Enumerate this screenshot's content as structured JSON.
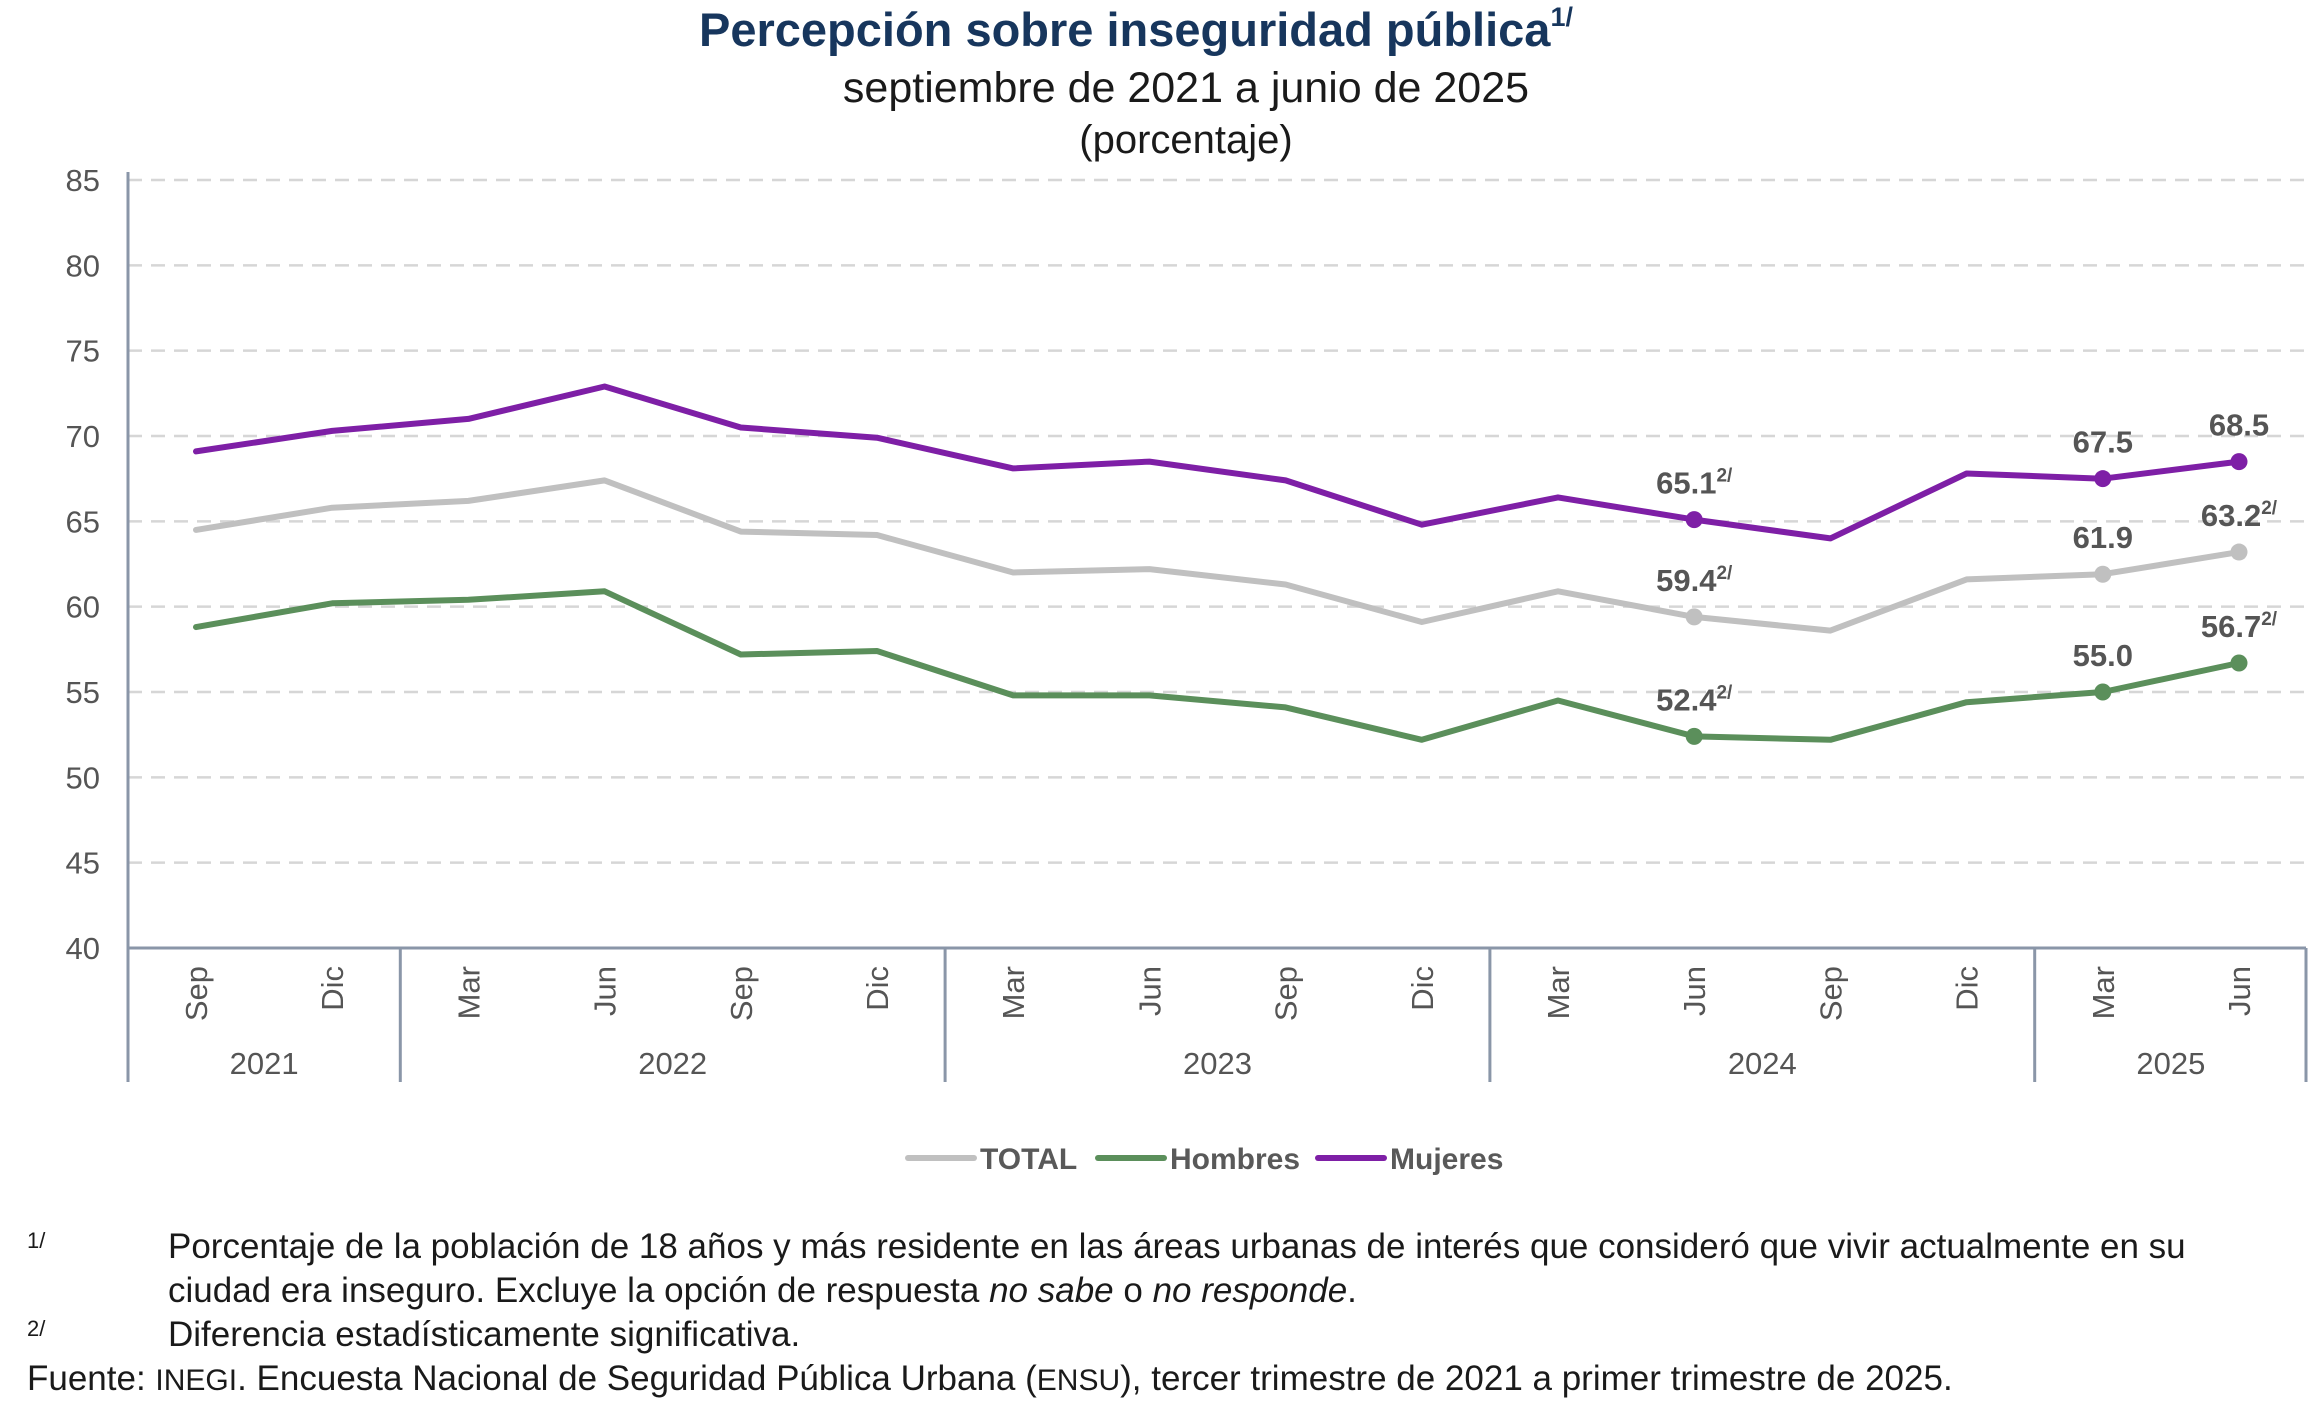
{
  "chart_data": {
    "type": "line",
    "title": "Percepción sobre inseguridad pública",
    "title_note": "1/",
    "subtitle": "septiembre de 2021 a junio de 2025",
    "unit_label": "(porcentaje)",
    "ylim": [
      40,
      85
    ],
    "yticks": [
      "85",
      "80",
      "75",
      "70",
      "65",
      "60",
      "55",
      "50",
      "45",
      "40"
    ],
    "grid": true,
    "legend_placement": "bottom",
    "categories": [
      "Sep",
      "Dic",
      "Mar",
      "Jun",
      "Sep",
      "Dic",
      "Mar",
      "Jun",
      "Sep",
      "Dic",
      "Mar",
      "Jun",
      "Sep",
      "Dic",
      "Mar",
      "Jun"
    ],
    "years": [
      {
        "label": "2021",
        "count": 2
      },
      {
        "label": "2022",
        "count": 4
      },
      {
        "label": "2023",
        "count": 4
      },
      {
        "label": "2024",
        "count": 4
      },
      {
        "label": "2025",
        "count": 2
      }
    ],
    "series": [
      {
        "name": "TOTAL",
        "color": "#c0c0c0",
        "values": [
          64.5,
          65.8,
          66.2,
          67.4,
          64.4,
          64.2,
          62.0,
          62.2,
          61.3,
          59.1,
          60.9,
          59.4,
          58.6,
          61.6,
          61.9,
          63.2
        ],
        "markers": [
          11,
          14,
          15
        ],
        "labels": [
          {
            "index": 11,
            "text": "59.4",
            "sup": "2/"
          },
          {
            "index": 14,
            "text": "61.9",
            "sup": ""
          },
          {
            "index": 15,
            "text": "63.2",
            "sup": "2/"
          }
        ]
      },
      {
        "name": "Hombres",
        "color": "#5b8f5b",
        "values": [
          58.8,
          60.2,
          60.4,
          60.9,
          57.2,
          57.4,
          54.8,
          54.8,
          54.1,
          52.2,
          54.5,
          52.4,
          52.2,
          54.4,
          55.0,
          56.7
        ],
        "markers": [
          11,
          14,
          15
        ],
        "labels": [
          {
            "index": 11,
            "text": "52.4",
            "sup": "2/"
          },
          {
            "index": 14,
            "text": "55.0",
            "sup": ""
          },
          {
            "index": 15,
            "text": "56.7",
            "sup": "2/"
          }
        ]
      },
      {
        "name": "Mujeres",
        "color": "#7e1fa6",
        "values": [
          69.1,
          70.3,
          71.0,
          72.9,
          70.5,
          69.9,
          68.1,
          68.5,
          67.4,
          64.8,
          66.4,
          65.1,
          64.0,
          67.8,
          67.5,
          68.5
        ],
        "markers": [
          11,
          14,
          15
        ],
        "labels": [
          {
            "index": 11,
            "text": "65.1",
            "sup": "2/"
          },
          {
            "index": 14,
            "text": "67.5",
            "sup": ""
          },
          {
            "index": 15,
            "text": "68.5",
            "sup": ""
          }
        ]
      }
    ]
  },
  "notes": {
    "note1_mark": "1/",
    "note1_text_a": "Porcentaje de la población de 18 años y más residente en las áreas urbanas de interés que consideró que vivir actualmente en su ciudad era inseguro. Excluye la opción de respuesta ",
    "note1_em1": "no sabe",
    "note1_mid": " o ",
    "note1_em2": "no responde",
    "note1_end": ".",
    "note2_mark": "2/",
    "note2_text": "Diferencia estadísticamente significativa.",
    "source_a": "Fuente: ",
    "source_inegi": "INEGI",
    "source_b": ". Encuesta Nacional de Seguridad Pública Urbana (",
    "source_ensu": "ENSU",
    "source_c": "), tercer trimestre de 2021 a primer trimestre de 2025."
  }
}
